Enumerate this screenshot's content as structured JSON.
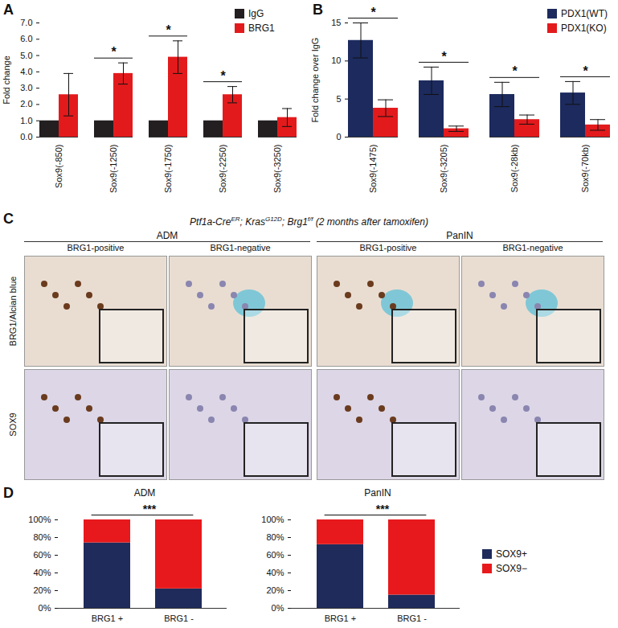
{
  "chart_data": [
    {
      "panel": "A",
      "type": "bar",
      "categories": [
        "Sox9(-850)",
        "Sox9(-1250)",
        "Sox9(-1750)",
        "Sox9(-2250)",
        "Sox9(-3250)"
      ],
      "series": [
        {
          "name": "IgG",
          "color": "#231f20",
          "values": [
            1,
            1,
            1,
            1,
            1
          ]
        },
        {
          "name": "BRG1",
          "color": "#e31a1c",
          "values": [
            2.6,
            3.9,
            4.9,
            2.6,
            1.2
          ],
          "errors": [
            1.3,
            0.65,
            1.0,
            0.5,
            0.55
          ]
        }
      ],
      "ylim": [
        0,
        7
      ],
      "yticks": [
        0,
        1,
        2,
        3,
        4,
        5,
        6,
        7
      ],
      "y_label": "Fold change",
      "legend": "top-right",
      "annotations": [
        {
          "category": "Sox9(-1250)",
          "text": "*"
        },
        {
          "category": "Sox9(-1750)",
          "text": "*"
        },
        {
          "category": "Sox9(-2250)",
          "text": "*"
        }
      ]
    },
    {
      "panel": "B",
      "type": "bar",
      "categories": [
        "Sox9(-1475)",
        "Sox9(-3205)",
        "Sox9(-28kb)",
        "Sox9(-70kb)"
      ],
      "series": [
        {
          "name": "PDX1(WT)",
          "color": "#1c2a5e",
          "values": [
            12.7,
            7.4,
            5.6,
            5.8
          ],
          "errors": [
            2.3,
            1.8,
            1.6,
            1.5
          ]
        },
        {
          "name": "PDX1(KO)",
          "color": "#e31a1c",
          "values": [
            3.8,
            1.1,
            2.3,
            1.6
          ],
          "errors": [
            1.1,
            0.35,
            0.6,
            0.7
          ]
        }
      ],
      "ylim": [
        0,
        15
      ],
      "yticks": [
        0,
        5,
        10,
        15
      ],
      "y_label": "Fold change over IgG",
      "legend": "top-right",
      "annotations": [
        {
          "category": "Sox9(-1475)",
          "text": "*"
        },
        {
          "category": "Sox9(-3205)",
          "text": "*"
        },
        {
          "category": "Sox9(-28kb)",
          "text": "*"
        },
        {
          "category": "Sox9(-70kb)",
          "text": "*"
        }
      ]
    },
    {
      "panel": "D",
      "type": "bar",
      "stacked": true,
      "title": "ADM",
      "categories": [
        "BRG1 +",
        "BRG1 -"
      ],
      "series": [
        {
          "name": "SOX9+",
          "color": "#1f2b5b",
          "values": [
            74,
            22
          ]
        },
        {
          "name": "SOX9−",
          "color": "#e8191c",
          "values": [
            26,
            78
          ]
        }
      ],
      "ylim": [
        0,
        100
      ],
      "yticks": [
        {
          "value": 0,
          "label": "0%"
        },
        {
          "value": 20,
          "label": "20%"
        },
        {
          "value": 40,
          "label": "40%"
        },
        {
          "value": 60,
          "label": "60%"
        },
        {
          "value": 80,
          "label": "80%"
        },
        {
          "value": 100,
          "label": "100%"
        }
      ],
      "annotations": [
        {
          "text": "***"
        }
      ]
    },
    {
      "type": "bar",
      "stacked": true,
      "title": "PanIN",
      "categories": [
        "BRG1 +",
        "BRG1 -"
      ],
      "series": [
        {
          "name": "SOX9+",
          "color": "#1f2b5b",
          "values": [
            72,
            15
          ]
        },
        {
          "name": "SOX9−",
          "color": "#e8191c",
          "values": [
            28,
            85
          ]
        }
      ],
      "ylim": [
        0,
        100
      ],
      "yticks": [
        {
          "value": 0,
          "label": "0%"
        },
        {
          "value": 20,
          "label": "20%"
        },
        {
          "value": 40,
          "label": "40%"
        },
        {
          "value": 60,
          "label": "60%"
        },
        {
          "value": 80,
          "label": "80%"
        },
        {
          "value": 100,
          "label": "100%"
        }
      ],
      "annotations": [
        {
          "text": "***"
        }
      ],
      "legend": "right"
    }
  ],
  "panel_c": {
    "panel": "C",
    "genotype": [
      {
        "text": "Ptf1a-Cre",
        "sup": "ER"
      },
      {
        "text": "; Kras",
        "sup": "G12D"
      },
      {
        "text": "; Brg1",
        "sup": "f/f"
      },
      {
        "text": " (2 months after tamoxifen)"
      }
    ],
    "groups": [
      {
        "label": "ADM",
        "columns": [
          "BRG1-positive",
          "BRG1-negative"
        ]
      },
      {
        "label": "PanIN",
        "columns": [
          "BRG1-positive",
          "BRG1-negative"
        ]
      }
    ],
    "rows": [
      "BRG1/Alcian blue",
      "SOX9"
    ]
  }
}
